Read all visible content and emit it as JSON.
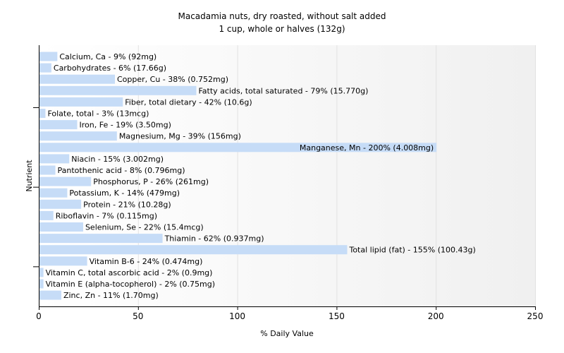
{
  "chart_data": {
    "type": "bar",
    "orientation": "horizontal",
    "title": "Macadamia nuts, dry roasted, without salt added",
    "subtitle": "1 cup, whole or halves (132g)",
    "xlabel": "% Daily Value",
    "ylabel": "Nutrient",
    "xlim": [
      0,
      250
    ],
    "xticks": [
      0,
      50,
      100,
      150,
      200,
      250
    ],
    "grid": true,
    "colors": {
      "bar": "#c6dcf7",
      "axis": "#000000",
      "grid": "#e2e2e2"
    },
    "categories": [
      "Calcium, Ca",
      "Carbohydrates",
      "Copper, Cu",
      "Fatty acids, total saturated",
      "Fiber, total dietary",
      "Folate, total",
      "Iron, Fe",
      "Magnesium, Mg",
      "Manganese, Mn",
      "Niacin",
      "Pantothenic acid",
      "Phosphorus, P",
      "Potassium, K",
      "Protein",
      "Riboflavin",
      "Selenium, Se",
      "Thiamin",
      "Total lipid (fat)",
      "Vitamin B-6",
      "Vitamin C, total ascorbic acid",
      "Vitamin E (alpha-tocopherol)",
      "Zinc, Zn"
    ],
    "values": [
      9,
      6,
      38,
      79,
      42,
      3,
      19,
      39,
      200,
      15,
      8,
      26,
      14,
      21,
      7,
      22,
      62,
      155,
      24,
      2,
      2,
      11
    ],
    "labels": [
      "Calcium, Ca - 9% (92mg)",
      "Carbohydrates - 6% (17.66g)",
      "Copper, Cu - 38% (0.752mg)",
      "Fatty acids, total saturated - 79% (15.770g)",
      "Fiber, total dietary - 42% (10.6g)",
      "Folate, total - 3% (13mcg)",
      "Iron, Fe - 19% (3.50mg)",
      "Magnesium, Mg - 39% (156mg)",
      "Manganese, Mn - 200% (4.008mg)",
      "Niacin - 15% (3.002mg)",
      "Pantothenic acid - 8% (0.796mg)",
      "Phosphorus, P - 26% (261mg)",
      "Potassium, K - 14% (479mg)",
      "Protein - 21% (10.28g)",
      "Riboflavin - 7% (0.115mg)",
      "Selenium, Se - 22% (15.4mcg)",
      "Thiamin - 62% (0.937mg)",
      "Total lipid (fat) - 155% (100.43g)",
      "Vitamin B-6 - 24% (0.474mg)",
      "Vitamin C, total ascorbic acid - 2% (0.9mg)",
      "Vitamin E (alpha-tocopherol) - 2% (0.75mg)",
      "Zinc, Zn - 11% (1.70mg)"
    ]
  }
}
